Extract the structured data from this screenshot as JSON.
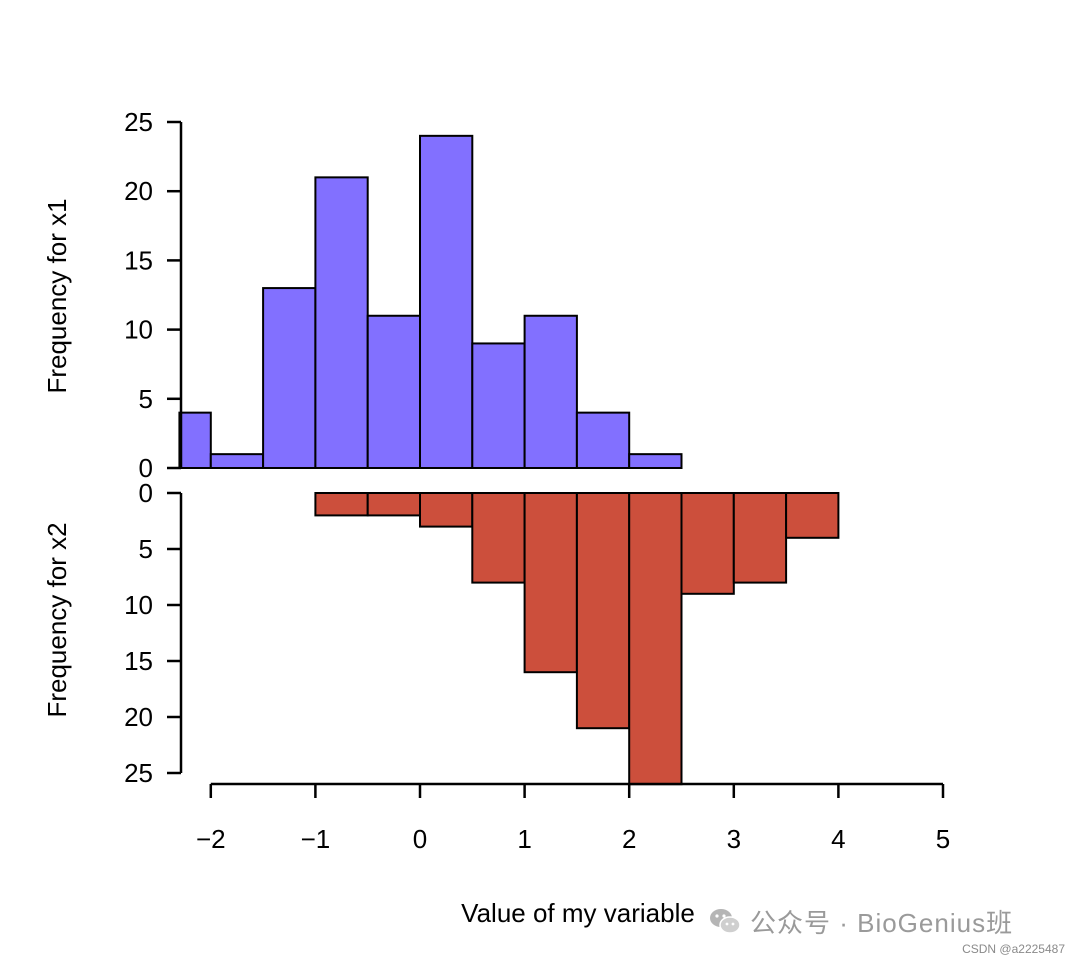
{
  "chart_data": [
    {
      "type": "bar",
      "name": "x1",
      "ylabel": "Frequency for x1",
      "ylim": [
        0,
        25
      ],
      "yticks": [
        "0",
        "5",
        "10",
        "15",
        "20",
        "25"
      ],
      "bins": [
        {
          "from": -2.3,
          "to": -2.0,
          "count": 4
        },
        {
          "from": -2.0,
          "to": -1.5,
          "count": 1
        },
        {
          "from": -1.5,
          "to": -1.0,
          "count": 13
        },
        {
          "from": -1.0,
          "to": -0.5,
          "count": 21
        },
        {
          "from": -0.5,
          "to": 0.0,
          "count": 11
        },
        {
          "from": 0.0,
          "to": 0.5,
          "count": 24
        },
        {
          "from": 0.5,
          "to": 1.0,
          "count": 9
        },
        {
          "from": 1.0,
          "to": 1.5,
          "count": 11
        },
        {
          "from": 1.5,
          "to": 2.0,
          "count": 4
        },
        {
          "from": 2.0,
          "to": 2.5,
          "count": 1
        }
      ],
      "color": "#8270ff",
      "orientation": "up"
    },
    {
      "type": "bar",
      "name": "x2",
      "ylabel": "Frequency for x2",
      "ylim": [
        0,
        25
      ],
      "yticks": [
        "0",
        "5",
        "10",
        "15",
        "20",
        "25"
      ],
      "bins": [
        {
          "from": -1.0,
          "to": -0.5,
          "count": 2
        },
        {
          "from": -0.5,
          "to": 0.0,
          "count": 2
        },
        {
          "from": 0.0,
          "to": 0.5,
          "count": 3
        },
        {
          "from": 0.5,
          "to": 1.0,
          "count": 8
        },
        {
          "from": 1.0,
          "to": 1.5,
          "count": 16
        },
        {
          "from": 1.5,
          "to": 2.0,
          "count": 21
        },
        {
          "from": 2.0,
          "to": 2.5,
          "count": 26
        },
        {
          "from": 2.5,
          "to": 3.0,
          "count": 9
        },
        {
          "from": 3.0,
          "to": 3.5,
          "count": 8
        },
        {
          "from": 3.5,
          "to": 4.0,
          "count": 4
        }
      ],
      "color": "#cc4f3c",
      "orientation": "down"
    }
  ],
  "x_axis": {
    "xlabel": "Value of my variable",
    "xticks": [
      "−2",
      "−1",
      "0",
      "1",
      "2",
      "3",
      "4",
      "5"
    ],
    "xtick_values": [
      -2,
      -1,
      0,
      1,
      2,
      3,
      4,
      5
    ]
  },
  "watermark": {
    "text": "公众号 · BioGenius班",
    "icon": "wechat-icon"
  },
  "credit": "CSDN @a2225487"
}
